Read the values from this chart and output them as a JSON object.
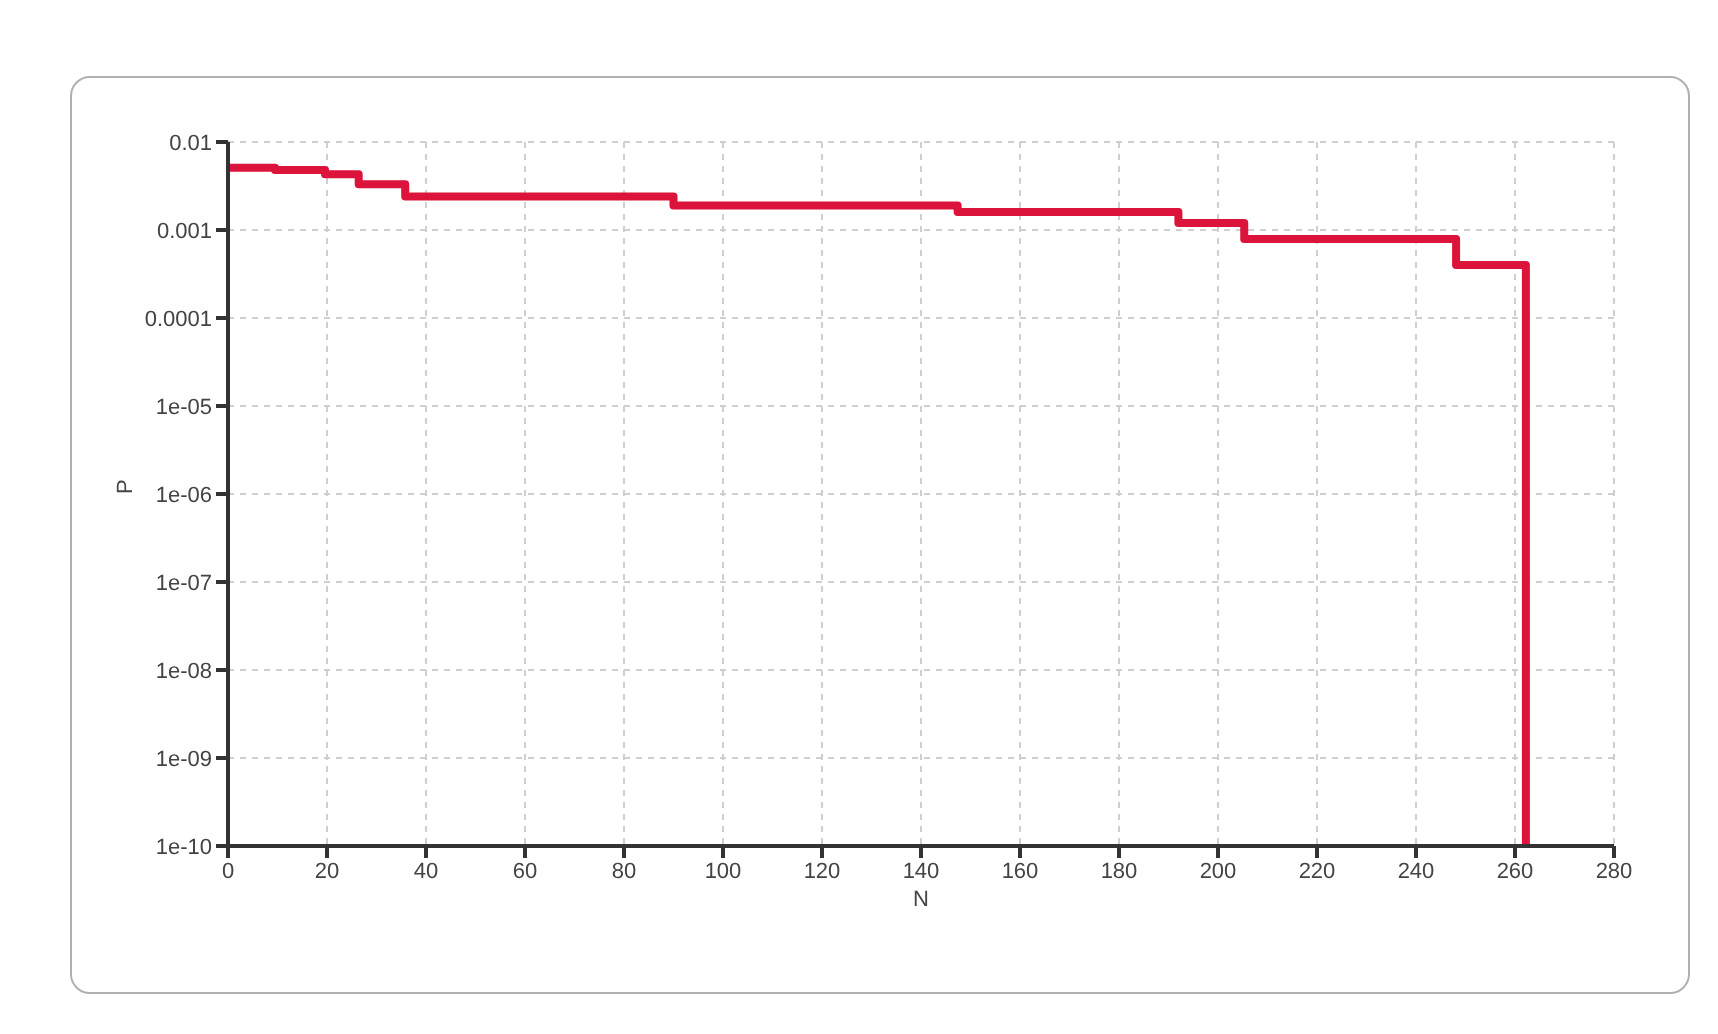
{
  "chart_data": {
    "type": "step",
    "xlabel": "N",
    "ylabel": "P",
    "log": "y",
    "grid": true,
    "line_style": "solid",
    "marker": "none",
    "xlim": [
      0,
      280
    ],
    "xticks": [
      0,
      20,
      40,
      60,
      80,
      100,
      120,
      140,
      160,
      180,
      200,
      220,
      240,
      260,
      280
    ],
    "ylim": [
      1e-10,
      0.01
    ],
    "yticks": [
      0.01,
      0.001,
      0.0001,
      {
        "value": 1e-05,
        "label": "1e-05"
      },
      {
        "value": 1e-06,
        "label": "1e-06"
      },
      {
        "value": 1e-07,
        "label": "1e-07"
      },
      {
        "value": 1e-08,
        "label": "1e-08"
      },
      {
        "value": 1e-09,
        "label": "1e-09"
      },
      {
        "value": 1e-10,
        "label": "1e-10"
      }
    ],
    "series": [
      {
        "color": "#dc143c",
        "x": [
          0,
          9.5,
          19.6,
          26.4,
          35.8,
          90,
          147.4,
          192,
          205.3,
          248.1,
          262.2
        ],
        "values": [
          0.0051,
          0.0048,
          0.0043,
          0.0033,
          0.0024,
          0.0019,
          0.0016,
          0.0012,
          0.00079,
          0.0004,
          1e-10
        ]
      }
    ]
  }
}
